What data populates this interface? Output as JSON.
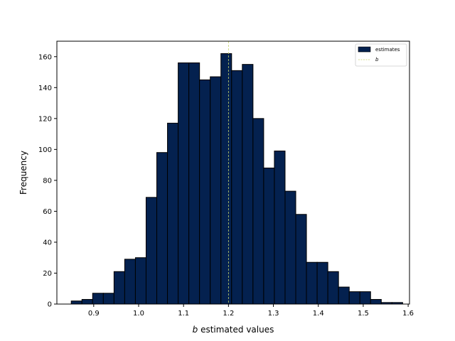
{
  "chart_data": {
    "type": "bar",
    "subtype": "histogram",
    "title": "",
    "xlabel_italic": "b",
    "xlabel_rest": " estimated values",
    "ylabel": "Frequency",
    "bin_start": 0.85,
    "bin_width": 0.0238,
    "values": [
      2,
      3,
      7,
      7,
      21,
      29,
      30,
      69,
      98,
      117,
      156,
      156,
      145,
      147,
      162,
      151,
      155,
      120,
      88,
      99,
      73,
      58,
      27,
      27,
      21,
      11,
      8,
      8,
      3,
      1,
      1
    ],
    "xlim": [
      0.818,
      1.603
    ],
    "ylim": [
      0,
      170
    ],
    "xticks": [
      0.9,
      1.0,
      1.1,
      1.2,
      1.3,
      1.4,
      1.5,
      1.6
    ],
    "xtick_labels": [
      "0.9",
      "1.0",
      "1.1",
      "1.2",
      "1.3",
      "1.4",
      "1.5",
      "1.6"
    ],
    "yticks": [
      0,
      20,
      40,
      60,
      80,
      100,
      120,
      140,
      160
    ],
    "ytick_labels": [
      "0",
      "20",
      "40",
      "60",
      "80",
      "100",
      "120",
      "140",
      "160"
    ],
    "bar_color": "#04214f",
    "edge_color": "#000000",
    "reference_line": {
      "x": 1.2,
      "color": "#c5d36b",
      "style": "dashed"
    },
    "legend": {
      "placement": "top-right",
      "entries": [
        {
          "label": "estimates",
          "type": "patch"
        },
        {
          "label": "b",
          "type": "line"
        }
      ]
    }
  }
}
